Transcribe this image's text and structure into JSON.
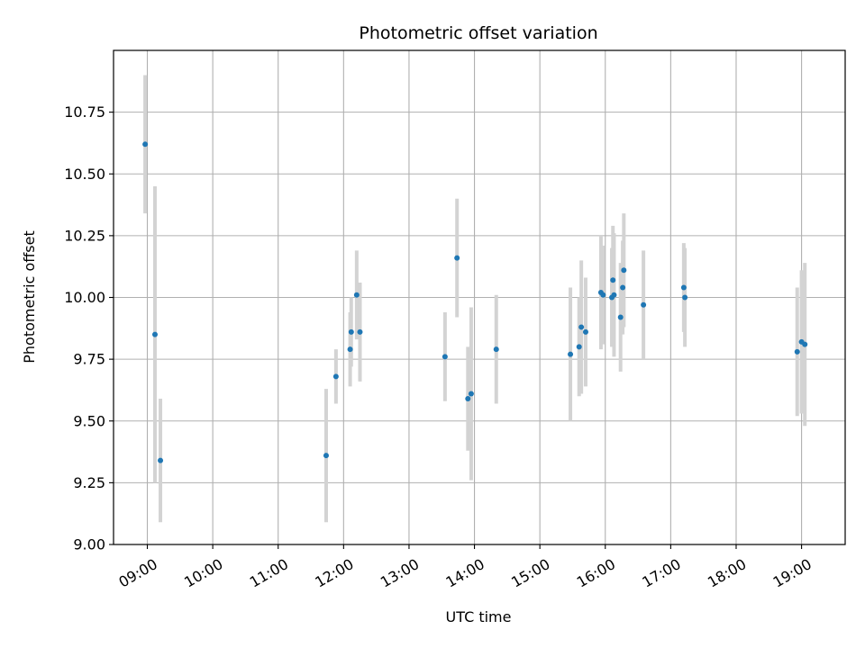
{
  "chart_data": {
    "type": "scatter",
    "title": "Photometric offset variation",
    "xlabel": "UTC time",
    "ylabel": "Photometric offset",
    "xlim": [
      "08:29",
      "19:40"
    ],
    "ylim": [
      9.0,
      11.0
    ],
    "x_ticks": [
      "09:00",
      "10:00",
      "11:00",
      "12:00",
      "13:00",
      "14:00",
      "15:00",
      "16:00",
      "17:00",
      "18:00",
      "19:00"
    ],
    "y_ticks": [
      9.0,
      9.25,
      9.5,
      9.75,
      10.0,
      10.25,
      10.5,
      10.75
    ],
    "grid": true,
    "point_color": "#1f77b4",
    "errorbar_color": "#d3d3d3",
    "points": [
      {
        "time": "08:58",
        "y": 10.62,
        "err": 0.28
      },
      {
        "time": "09:07",
        "y": 9.85,
        "err": 0.6
      },
      {
        "time": "09:12",
        "y": 9.34,
        "err": 0.25
      },
      {
        "time": "11:44",
        "y": 9.36,
        "err": 0.27
      },
      {
        "time": "11:53",
        "y": 9.68,
        "err": 0.11
      },
      {
        "time": "12:06",
        "y": 9.79,
        "err": 0.15
      },
      {
        "time": "12:07",
        "y": 9.86,
        "err": 0.14
      },
      {
        "time": "12:12",
        "y": 10.01,
        "err": 0.18
      },
      {
        "time": "12:15",
        "y": 9.86,
        "err": 0.2
      },
      {
        "time": "13:33",
        "y": 9.76,
        "err": 0.18
      },
      {
        "time": "13:44",
        "y": 10.16,
        "err": 0.24
      },
      {
        "time": "13:54",
        "y": 9.59,
        "err": 0.21
      },
      {
        "time": "13:57",
        "y": 9.61,
        "err": 0.35
      },
      {
        "time": "14:20",
        "y": 9.79,
        "err": 0.22
      },
      {
        "time": "15:28",
        "y": 9.77,
        "err": 0.27
      },
      {
        "time": "15:36",
        "y": 9.8,
        "err": 0.2
      },
      {
        "time": "15:38",
        "y": 9.88,
        "err": 0.27
      },
      {
        "time": "15:42",
        "y": 9.86,
        "err": 0.22
      },
      {
        "time": "15:56",
        "y": 10.02,
        "err": 0.23
      },
      {
        "time": "15:58",
        "y": 10.01,
        "err": 0.2
      },
      {
        "time": "16:06",
        "y": 10.0,
        "err": 0.2
      },
      {
        "time": "16:07",
        "y": 10.07,
        "err": 0.22
      },
      {
        "time": "16:08",
        "y": 10.01,
        "err": 0.25
      },
      {
        "time": "16:14",
        "y": 9.92,
        "err": 0.22
      },
      {
        "time": "16:16",
        "y": 10.04,
        "err": 0.19
      },
      {
        "time": "16:17",
        "y": 10.11,
        "err": 0.23
      },
      {
        "time": "16:35",
        "y": 9.97,
        "err": 0.22
      },
      {
        "time": "17:12",
        "y": 10.04,
        "err": 0.18
      },
      {
        "time": "17:13",
        "y": 10.0,
        "err": 0.2
      },
      {
        "time": "18:56",
        "y": 9.78,
        "err": 0.26
      },
      {
        "time": "19:00",
        "y": 9.82,
        "err": 0.29
      },
      {
        "time": "19:03",
        "y": 9.81,
        "err": 0.33
      }
    ]
  }
}
